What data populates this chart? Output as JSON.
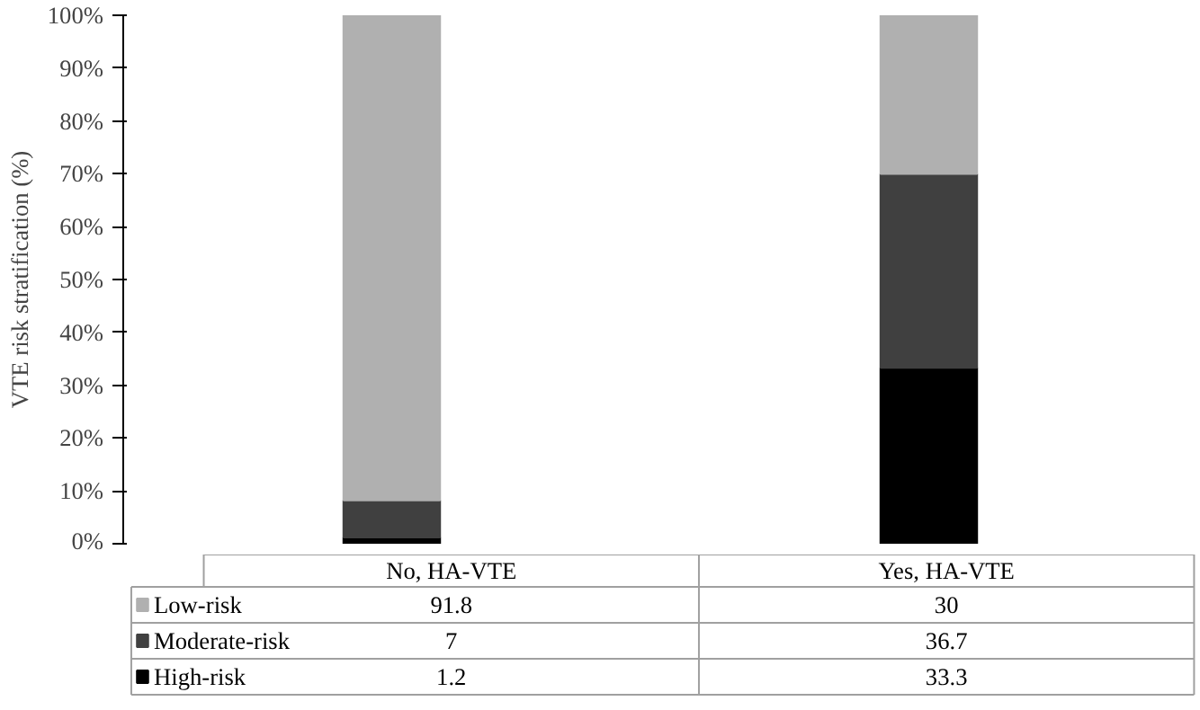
{
  "chart_data": {
    "type": "bar",
    "stacked": true,
    "ylabel": "VTE risk stratification (%)",
    "categories": [
      "No, HA-VTE",
      "Yes, HA-VTE"
    ],
    "series": [
      {
        "name": "High-risk",
        "color": "#000000",
        "values": [
          1.2,
          33.3
        ]
      },
      {
        "name": "Moderate-risk",
        "color": "#404040",
        "values": [
          7,
          36.7
        ]
      },
      {
        "name": "Low-risk",
        "color": "#b0b0b0",
        "values": [
          91.8,
          30
        ]
      }
    ],
    "ylim": [
      0,
      100
    ],
    "yticks": [
      {
        "value": 0,
        "label": "0%"
      },
      {
        "value": 10,
        "label": "10%"
      },
      {
        "value": 20,
        "label": "20%"
      },
      {
        "value": 30,
        "label": "30%"
      },
      {
        "value": 40,
        "label": "40%"
      },
      {
        "value": 50,
        "label": "50%"
      },
      {
        "value": 60,
        "label": "60%"
      },
      {
        "value": 70,
        "label": "70%"
      },
      {
        "value": 80,
        "label": "80%"
      },
      {
        "value": 90,
        "label": "90%"
      },
      {
        "value": 100,
        "label": "100%"
      }
    ],
    "grid": false,
    "legend": "bottom",
    "data_labels": true
  }
}
